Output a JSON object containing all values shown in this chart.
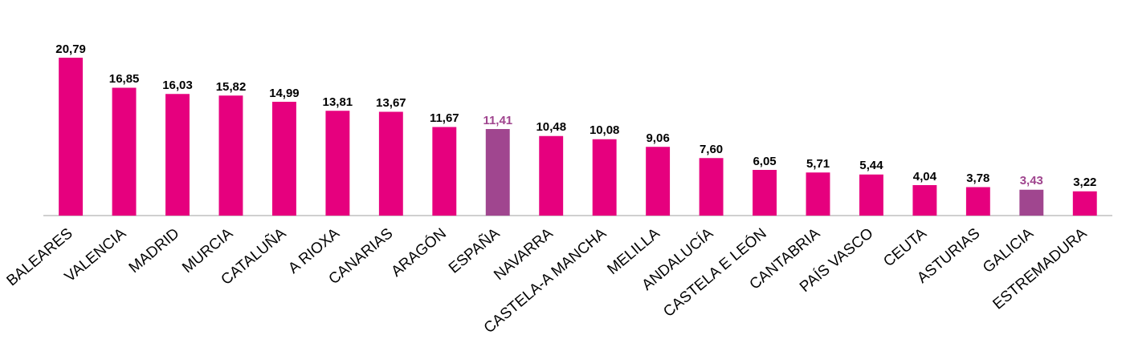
{
  "chart_data": {
    "type": "bar",
    "categories": [
      "BALEARES",
      "VALENCIA",
      "MADRID",
      "MURCIA",
      "CATALUÑA",
      "A RIOXA",
      "CANARIAS",
      "ARAGÓN",
      "ESPAÑA",
      "NAVARRA",
      "CASTELA-A MANCHA",
      "MELILLA",
      "ANDALUCÍA",
      "CASTELA E LEÓN",
      "CANTABRIA",
      "PAÍS VASCO",
      "CEUTA",
      "ASTURIAS",
      "GALICIA",
      "ESTREMADURA"
    ],
    "values": [
      20.79,
      16.85,
      16.03,
      15.82,
      14.99,
      13.81,
      13.67,
      11.67,
      11.41,
      10.48,
      10.08,
      9.06,
      7.6,
      6.05,
      5.71,
      5.44,
      4.04,
      3.78,
      3.43,
      3.22
    ],
    "colors": [
      "#e6007e",
      "#e6007e",
      "#e6007e",
      "#e6007e",
      "#e6007e",
      "#e6007e",
      "#e6007e",
      "#e6007e",
      "#a0468f",
      "#e6007e",
      "#e6007e",
      "#e6007e",
      "#e6007e",
      "#e6007e",
      "#e6007e",
      "#e6007e",
      "#e6007e",
      "#e6007e",
      "#a0468f",
      "#e6007e"
    ],
    "value_labels": [
      "20,79",
      "16,85",
      "16,03",
      "15,82",
      "14,99",
      "13,81",
      "13,67",
      "11,67",
      "11,41",
      "10,48",
      "10,08",
      "9,06",
      "7,60",
      "6,05",
      "5,71",
      "5,44",
      "4,04",
      "3,78",
      "3,43",
      "3,22"
    ],
    "grid": false,
    "legend": false
  }
}
